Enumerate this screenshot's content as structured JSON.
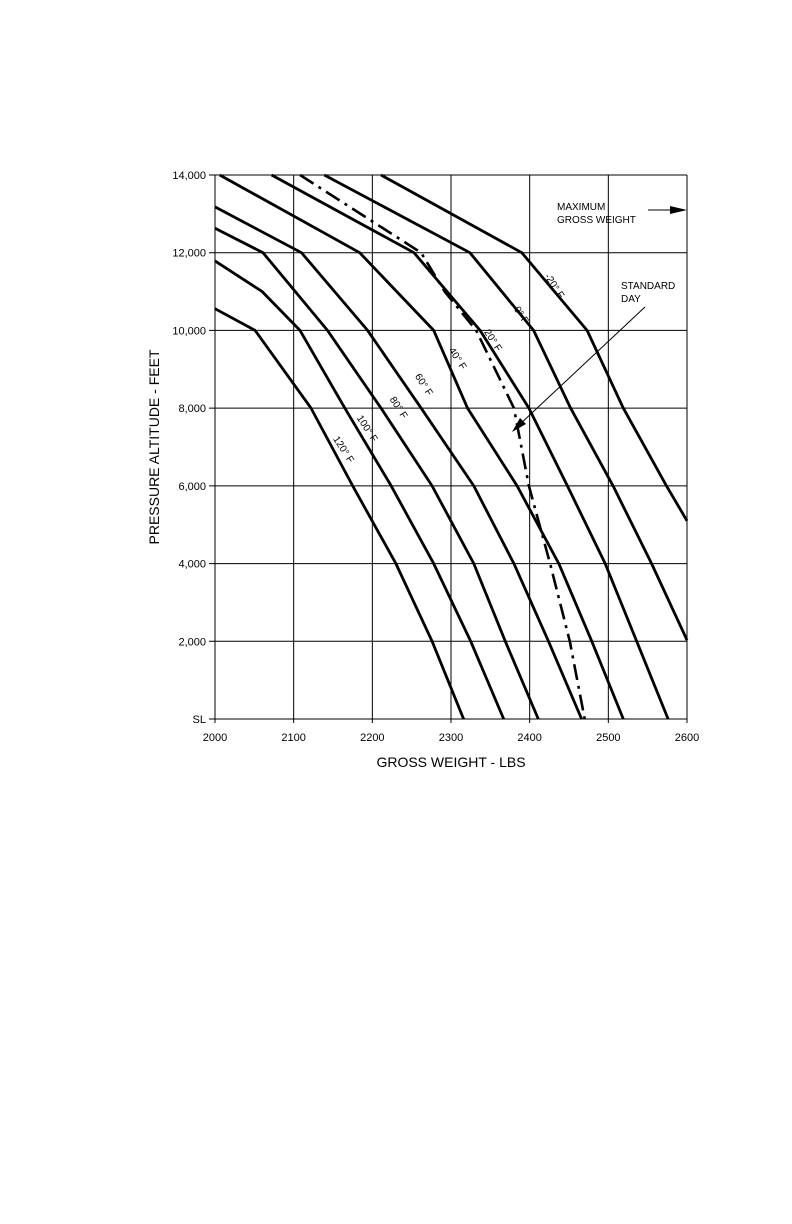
{
  "chart_data": {
    "type": "line",
    "title": "",
    "xlabel": "GROSS WEIGHT - LBS",
    "ylabel": "PRESSURE ALTITUDE - FEET",
    "xlim": [
      2000,
      2600
    ],
    "ylim": [
      0,
      14000
    ],
    "grid": true,
    "xticks": [
      2000,
      2100,
      2200,
      2300,
      2400,
      2500,
      2600
    ],
    "xtick_labels": [
      "2000",
      "2100",
      "2200",
      "2300",
      "2400",
      "2500",
      "2600"
    ],
    "yticks": [
      0,
      2000,
      4000,
      6000,
      8000,
      10000,
      12000,
      14000
    ],
    "ytick_labels": [
      "SL",
      "2,000",
      "4,000",
      "6,000",
      "8,000",
      "10,000",
      "12,000",
      "14,000"
    ],
    "series": [
      {
        "name": "-20° F",
        "style": "solid",
        "points": [
          [
            2211,
            14000
          ],
          [
            2390,
            12000
          ],
          [
            2473,
            10000
          ],
          [
            2519,
            8000
          ],
          [
            2574,
            6000
          ],
          [
            2600,
            5100
          ]
        ]
      },
      {
        "name": "0° F",
        "style": "solid",
        "points": [
          [
            2139,
            14000
          ],
          [
            2324,
            12000
          ],
          [
            2405,
            10000
          ],
          [
            2452,
            8000
          ],
          [
            2506,
            6000
          ],
          [
            2555,
            4000
          ],
          [
            2600,
            2030
          ]
        ]
      },
      {
        "name": "20° F",
        "style": "solid",
        "points": [
          [
            2072,
            14000
          ],
          [
            2253,
            12000
          ],
          [
            2337,
            10000
          ],
          [
            2399,
            8000
          ],
          [
            2448,
            6000
          ],
          [
            2496,
            4000
          ],
          [
            2536,
            2000
          ],
          [
            2576,
            0
          ]
        ]
      },
      {
        "name": "40° F",
        "style": "solid",
        "points": [
          [
            2006,
            14000
          ],
          [
            2184,
            12000
          ],
          [
            2278,
            10000
          ],
          [
            2321,
            8000
          ],
          [
            2384,
            6000
          ],
          [
            2437,
            4000
          ],
          [
            2479,
            2000
          ],
          [
            2519,
            0
          ]
        ]
      },
      {
        "name": "60° F",
        "style": "solid",
        "points": [
          [
            2000,
            13180
          ],
          [
            2110,
            12000
          ],
          [
            2194,
            10000
          ],
          [
            2262,
            8000
          ],
          [
            2329,
            6000
          ],
          [
            2380,
            4000
          ],
          [
            2424,
            2000
          ],
          [
            2466,
            0
          ]
        ]
      },
      {
        "name": "80° F",
        "style": "solid",
        "points": [
          [
            2000,
            12630
          ],
          [
            2061,
            12000
          ],
          [
            2143,
            10000
          ],
          [
            2211,
            8000
          ],
          [
            2276,
            6000
          ],
          [
            2329,
            4000
          ],
          [
            2369,
            2000
          ],
          [
            2411,
            0
          ]
        ]
      },
      {
        "name": "100° F",
        "style": "solid",
        "points": [
          [
            2000,
            11790
          ],
          [
            2060,
            11000
          ],
          [
            2108,
            10000
          ],
          [
            2165,
            8000
          ],
          [
            2224,
            6000
          ],
          [
            2278,
            4000
          ],
          [
            2325,
            2000
          ],
          [
            2367,
            0
          ]
        ]
      },
      {
        "name": "120° F",
        "style": "solid",
        "points": [
          [
            2000,
            10560
          ],
          [
            2051,
            10000
          ],
          [
            2122,
            8000
          ],
          [
            2175,
            6000
          ],
          [
            2230,
            4000
          ],
          [
            2276,
            2000
          ],
          [
            2316,
            0
          ]
        ]
      },
      {
        "name": "STANDARD DAY",
        "style": "dashdot",
        "points": [
          [
            2108,
            14000
          ],
          [
            2262,
            12000
          ],
          [
            2292,
            11000
          ],
          [
            2332,
            10000
          ],
          [
            2380,
            8000
          ],
          [
            2399,
            6000
          ],
          [
            2426,
            4000
          ],
          [
            2451,
            2000
          ],
          [
            2470,
            0
          ]
        ]
      }
    ],
    "curve_labels": [
      {
        "text": "-20° F",
        "at": [
          2428,
          11100
        ]
      },
      {
        "text": "0° F",
        "at": [
          2386,
          10350
        ]
      },
      {
        "text": "20° F",
        "at": [
          2350,
          9700
        ]
      },
      {
        "text": "40° F",
        "at": [
          2305,
          9230
        ]
      },
      {
        "text": "60° F",
        "at": [
          2262,
          8560
        ]
      },
      {
        "text": "80° F",
        "at": [
          2230,
          7970
        ]
      },
      {
        "text": "100° F",
        "at": [
          2190,
          7430
        ]
      },
      {
        "text": "120° F",
        "at": [
          2160,
          6890
        ]
      }
    ],
    "annotations": [
      {
        "lines": [
          "MAXIMUM",
          "GROSS WEIGHT"
        ],
        "arrow_to": [
          2600,
          13000
        ]
      },
      {
        "lines": [
          "STANDARD",
          "DAY"
        ],
        "arrow_to": [
          2380,
          7500
        ]
      }
    ]
  }
}
